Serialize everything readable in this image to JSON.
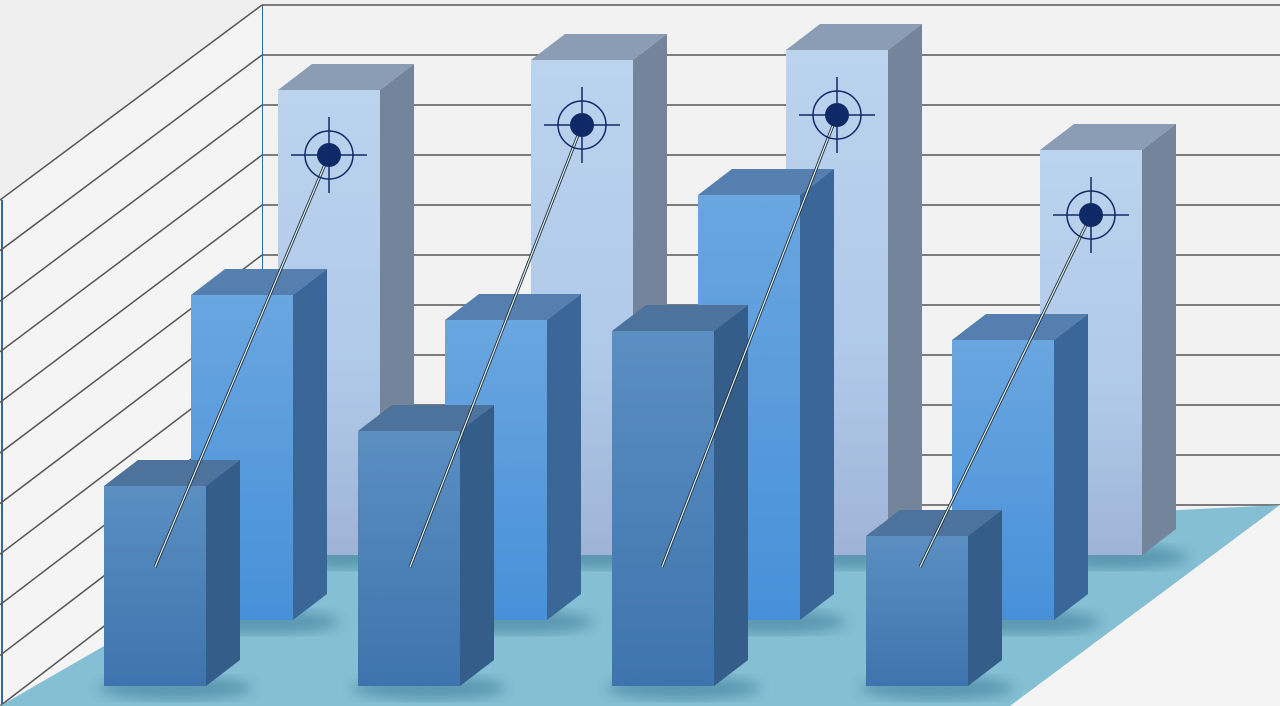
{
  "chart_data": {
    "type": "bar",
    "style": "3d-clipart",
    "title": "",
    "xlabel": "",
    "ylabel": "",
    "grid": true,
    "categories": [
      "",
      "",
      "",
      ""
    ],
    "series": [
      {
        "values": [
          9.3,
          9.9,
          10.1,
          8.1
        ],
        "color": "#b4cdeb",
        "markers": "target-icon"
      },
      {
        "values": [
          6.5,
          6.0,
          8.5,
          5.6
        ],
        "color": "#5b9ee0"
      },
      {
        "values": [
          4.0,
          5.1,
          7.1,
          3.0
        ],
        "color": "#4a80b8"
      }
    ],
    "ylim": [
      0,
      11
    ]
  },
  "colors": {
    "background": "#efefef",
    "wall_edge": "#2f6aa8",
    "gridline": "#555555",
    "floor": "#84bfd3",
    "target": "#0f2a66"
  }
}
